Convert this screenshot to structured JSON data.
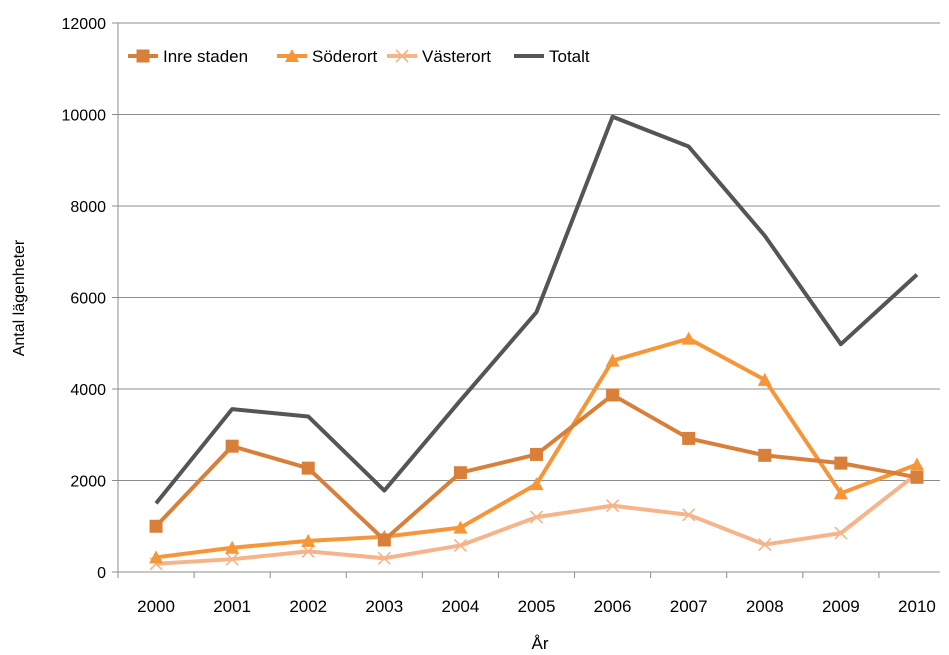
{
  "chart_data": {
    "type": "line",
    "xlabel": "År",
    "ylabel": "Antal lägenheter",
    "ylim": [
      0,
      12000
    ],
    "yticks": [
      0,
      2000,
      4000,
      6000,
      8000,
      10000,
      12000
    ],
    "grid": true,
    "legend_position": "top-left",
    "categories": [
      "2000",
      "2001",
      "2002",
      "2003",
      "2004",
      "2005",
      "2006",
      "2007",
      "2008",
      "2009",
      "2010"
    ],
    "series": [
      {
        "name": "Inre staden",
        "color": "#d8803a",
        "marker": "square",
        "values": [
          1000,
          2750,
          2270,
          700,
          2170,
          2570,
          3870,
          2920,
          2550,
          2380,
          2070
        ]
      },
      {
        "name": "Söderort",
        "color": "#f59638",
        "marker": "triangle",
        "values": [
          320,
          530,
          680,
          770,
          970,
          1920,
          4620,
          5100,
          4200,
          1720,
          2350
        ]
      },
      {
        "name": "Västerort",
        "color": "#f5b48a",
        "marker": "x",
        "values": [
          180,
          280,
          450,
          300,
          580,
          1200,
          1450,
          1250,
          600,
          850,
          2150
        ]
      },
      {
        "name": "Totalt",
        "color": "#555555",
        "marker": "none",
        "values": [
          1500,
          3560,
          3400,
          1780,
          3750,
          5680,
          9950,
          9300,
          7350,
          4980,
          6500
        ]
      }
    ]
  }
}
